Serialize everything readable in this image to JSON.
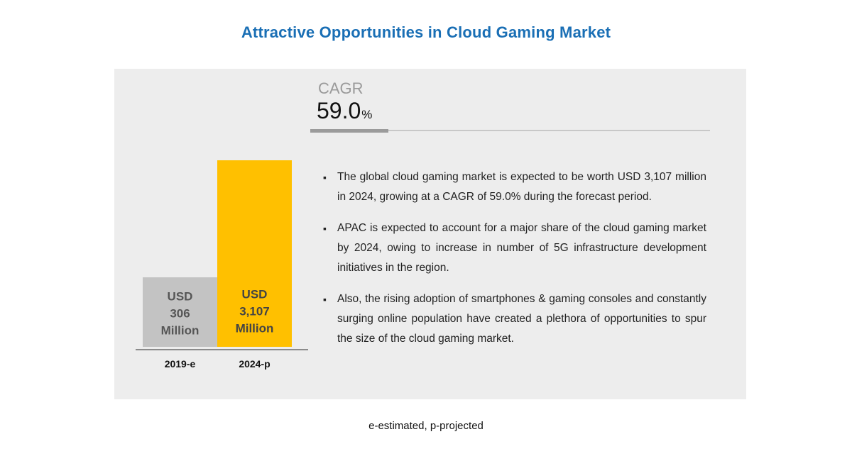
{
  "title": "Attractive Opportunities in Cloud Gaming Market",
  "cagr": {
    "label": "CAGR",
    "value": "59.0",
    "unit": "%"
  },
  "chart_data": {
    "type": "bar",
    "categories": [
      "2019-e",
      "2024-p"
    ],
    "values": [
      306,
      3107
    ],
    "bar_labels": [
      [
        "USD",
        "306",
        "Million"
      ],
      [
        "USD",
        "3,107",
        "Million"
      ]
    ],
    "colors": [
      "#c3c3c3",
      "#ffc000"
    ],
    "label_colors": [
      "#555555",
      "#444444"
    ],
    "ylim": [
      0,
      3107
    ],
    "grid": false,
    "axis_color": "#6b6b6b"
  },
  "bullets": [
    "The global cloud gaming market is expected to be worth USD 3,107 million in 2024, growing at a CAGR of 59.0% during the forecast period.",
    "APAC is expected to account for a major share of the cloud gaming market by 2024, owing to increase in number of 5G infrastructure development initiatives in the region.",
    "Also, the rising adoption of smartphones & gaming consoles and constantly surging online population have created a plethora of opportunities to spur the size of the cloud gaming market."
  ],
  "bullet_symbol": "▪",
  "footnote": "e-estimated, p-projected"
}
